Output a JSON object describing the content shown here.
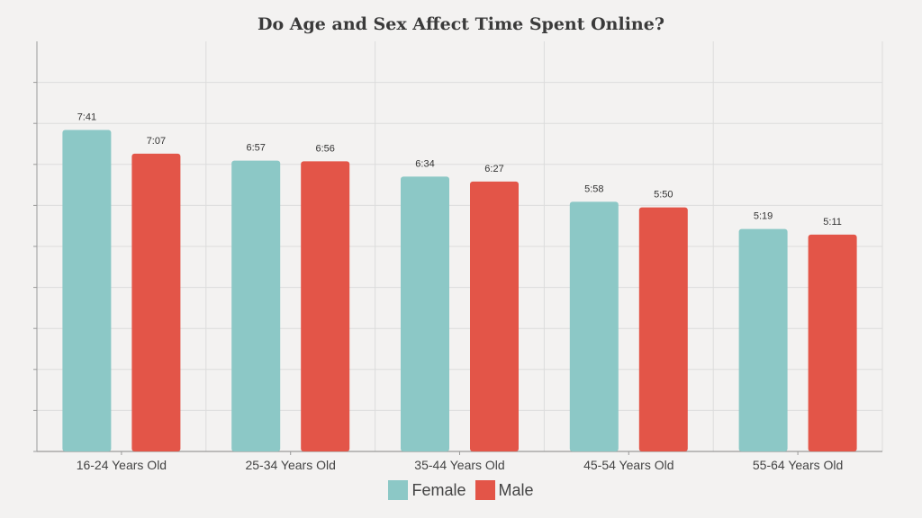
{
  "chart_data": {
    "type": "bar",
    "title": "Do Age and Sex Affect Time Spent Online?",
    "xlabel": "",
    "ylabel": "",
    "categories": [
      "16-24 Years Old",
      "25-34 Years Old",
      "35-44 Years Old",
      "45-54 Years Old",
      "55-64 Years Old"
    ],
    "series": [
      {
        "name": "Female",
        "color": "#8cc8c6",
        "values": [
          7.683,
          6.95,
          6.567,
          5.967,
          5.317
        ],
        "labels": [
          "7:41",
          "6:57",
          "6:34",
          "5:58",
          "5:19"
        ]
      },
      {
        "name": "Male",
        "color": "#e35548",
        "values": [
          7.117,
          6.933,
          6.45,
          5.833,
          5.183
        ],
        "labels": [
          "7:07",
          "6:56",
          "6:27",
          "5:50",
          "5:11"
        ]
      }
    ],
    "ylim": [
      0,
      9.8
    ],
    "grid": true,
    "legend_position": "bottom"
  }
}
